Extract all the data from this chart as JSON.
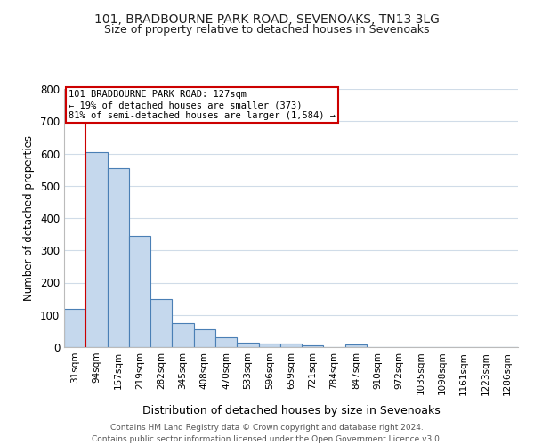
{
  "title_line1": "101, BRADBOURNE PARK ROAD, SEVENOAKS, TN13 3LG",
  "title_line2": "Size of property relative to detached houses in Sevenoaks",
  "xlabel": "Distribution of detached houses by size in Sevenoaks",
  "ylabel": "Number of detached properties",
  "bar_labels": [
    "31sqm",
    "94sqm",
    "157sqm",
    "219sqm",
    "282sqm",
    "345sqm",
    "408sqm",
    "470sqm",
    "533sqm",
    "596sqm",
    "659sqm",
    "721sqm",
    "784sqm",
    "847sqm",
    "910sqm",
    "972sqm",
    "1035sqm",
    "1098sqm",
    "1161sqm",
    "1223sqm",
    "1286sqm"
  ],
  "bar_heights": [
    120,
    605,
    555,
    345,
    148,
    75,
    55,
    30,
    15,
    12,
    12,
    6,
    0,
    8,
    0,
    0,
    0,
    0,
    0,
    0,
    0
  ],
  "bar_color": "#c5d8ed",
  "bar_edge_color": "#4a7fb5",
  "ylim": [
    0,
    800
  ],
  "yticks": [
    0,
    100,
    200,
    300,
    400,
    500,
    600,
    700,
    800
  ],
  "property_bar_index": 1,
  "red_line_color": "#cc0000",
  "annotation_text_line1": "101 BRADBOURNE PARK ROAD: 127sqm",
  "annotation_text_line2": "← 19% of detached houses are smaller (373)",
  "annotation_text_line3": "81% of semi-detached houses are larger (1,584) →",
  "annotation_box_color": "#ffffff",
  "annotation_box_edge": "#cc0000",
  "footer_line1": "Contains HM Land Registry data © Crown copyright and database right 2024.",
  "footer_line2": "Contains public sector information licensed under the Open Government Licence v3.0.",
  "bg_color": "#ffffff",
  "grid_color": "#d0dce8",
  "title_fontsize": 10,
  "subtitle_fontsize": 9,
  "bar_width": 1.0
}
